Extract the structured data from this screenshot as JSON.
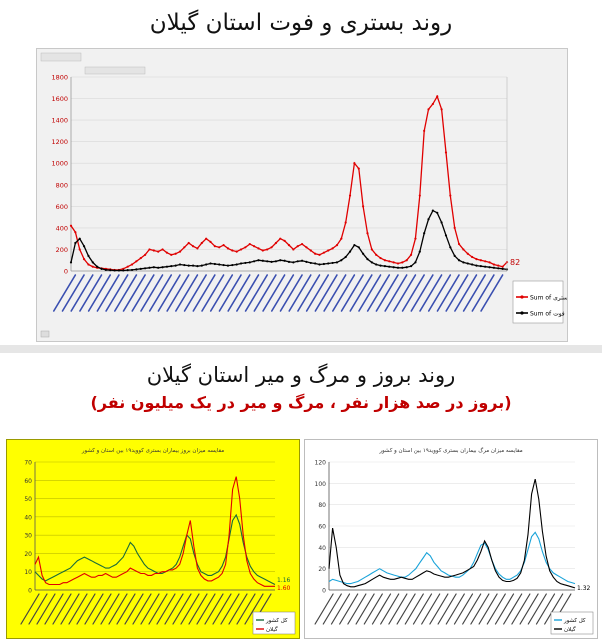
{
  "header1": {
    "title": "روند بستری و فوت استان گیلان"
  },
  "header2": {
    "title": "روند بروز و مرگ و میر استان گیلان",
    "subtitle": "(بروز در صد هزار نفر ، مرگ و میر در یک میلیون نفر)"
  },
  "colors": {
    "red": "#e00000",
    "black": "#000000",
    "blue": "#1aa3d9",
    "green": "#1a6b3a",
    "yellow_bg": "#ffff00"
  },
  "chart_data": [
    {
      "type": "line",
      "title": "",
      "ylim": [
        0,
        1800
      ],
      "y_ticks": [
        0,
        200,
        400,
        600,
        800,
        1000,
        1200,
        1400,
        1600,
        1800
      ],
      "grid": true,
      "legend_position": "right",
      "end_label": "82",
      "x_tick_count": 50,
      "series": [
        {
          "name": "Sum of بستری",
          "color": "#e00000",
          "values": [
            420,
            360,
            200,
            110,
            60,
            40,
            30,
            25,
            20,
            15,
            10,
            10,
            20,
            40,
            60,
            90,
            120,
            150,
            200,
            190,
            180,
            200,
            170,
            150,
            160,
            180,
            220,
            260,
            230,
            210,
            260,
            300,
            270,
            230,
            220,
            240,
            210,
            190,
            180,
            200,
            220,
            250,
            230,
            210,
            190,
            200,
            220,
            260,
            300,
            280,
            240,
            200,
            230,
            250,
            220,
            190,
            160,
            150,
            170,
            190,
            210,
            240,
            300,
            450,
            700,
            1000,
            950,
            600,
            350,
            200,
            150,
            120,
            100,
            90,
            80,
            70,
            80,
            100,
            150,
            300,
            700,
            1300,
            1500,
            1550,
            1620,
            1500,
            1100,
            700,
            400,
            250,
            200,
            160,
            130,
            110,
            100,
            90,
            80,
            60,
            50,
            40,
            82
          ]
        },
        {
          "name": "Sum of فوت",
          "color": "#000000",
          "values": [
            80,
            260,
            300,
            230,
            140,
            80,
            40,
            20,
            10,
            8,
            5,
            5,
            5,
            8,
            10,
            15,
            20,
            25,
            30,
            35,
            30,
            35,
            40,
            45,
            50,
            60,
            55,
            50,
            50,
            45,
            50,
            60,
            70,
            65,
            60,
            55,
            50,
            55,
            60,
            70,
            75,
            80,
            90,
            100,
            95,
            90,
            85,
            90,
            100,
            95,
            85,
            80,
            90,
            95,
            85,
            75,
            70,
            60,
            65,
            70,
            75,
            80,
            100,
            130,
            180,
            240,
            220,
            160,
            110,
            80,
            60,
            50,
            45,
            40,
            35,
            30,
            30,
            35,
            45,
            80,
            180,
            350,
            480,
            560,
            540,
            450,
            330,
            220,
            140,
            100,
            80,
            70,
            60,
            50,
            45,
            40,
            35,
            30,
            25,
            20,
            15
          ]
        }
      ]
    },
    {
      "type": "line",
      "title": "مقایسه میزان بروز بیماران بستری کووید۱۹ بین استان و کشور",
      "ylim": [
        0,
        70
      ],
      "y_ticks": [
        0,
        10,
        20,
        30,
        40,
        50,
        60,
        70
      ],
      "grid": true,
      "legend_position": "bottom-right",
      "end_labels": [
        "1.16",
        "1.60"
      ],
      "x_tick_count": 30,
      "series": [
        {
          "name": "کل کشور",
          "color": "#1a6b3a",
          "values": [
            10,
            8,
            6,
            5,
            6,
            7,
            8,
            9,
            10,
            11,
            12,
            14,
            16,
            17,
            18,
            17,
            16,
            15,
            14,
            13,
            12,
            12,
            13,
            14,
            16,
            18,
            22,
            26,
            24,
            20,
            17,
            14,
            12,
            11,
            10,
            9,
            9,
            10,
            11,
            12,
            14,
            18,
            24,
            30,
            28,
            20,
            14,
            10,
            9,
            8,
            8,
            9,
            10,
            13,
            18,
            28,
            38,
            41,
            36,
            26,
            18,
            13,
            10,
            8,
            7,
            6,
            5,
            4,
            3
          ]
        },
        {
          "name": "گیلان",
          "color": "#e00000",
          "values": [
            14,
            18,
            8,
            4,
            3,
            3,
            3,
            3,
            4,
            4,
            5,
            6,
            7,
            8,
            9,
            8,
            7,
            7,
            8,
            8,
            9,
            8,
            7,
            7,
            8,
            9,
            10,
            12,
            11,
            10,
            9,
            9,
            8,
            8,
            9,
            9,
            10,
            10,
            11,
            11,
            12,
            14,
            20,
            30,
            38,
            24,
            12,
            8,
            6,
            5,
            5,
            6,
            7,
            9,
            14,
            30,
            55,
            62,
            50,
            30,
            16,
            9,
            6,
            4,
            3,
            2,
            2,
            2,
            2
          ]
        }
      ]
    },
    {
      "type": "line",
      "title": "مقایسه میزان مرگ بیماران بستری کووید۱۹ بین استان و کشور",
      "ylim": [
        0,
        120
      ],
      "y_ticks": [
        0,
        20,
        40,
        60,
        80,
        100,
        120
      ],
      "grid": true,
      "legend_position": "bottom-right",
      "end_label": "1.32",
      "x_tick_count": 30,
      "series": [
        {
          "name": "کل کشور",
          "color": "#1aa3d9",
          "values": [
            8,
            10,
            9,
            8,
            7,
            6,
            6,
            7,
            8,
            10,
            12,
            14,
            16,
            18,
            20,
            18,
            16,
            15,
            14,
            13,
            12,
            12,
            14,
            17,
            20,
            25,
            30,
            35,
            32,
            26,
            22,
            18,
            16,
            14,
            13,
            12,
            12,
            14,
            17,
            20,
            26,
            34,
            42,
            44,
            38,
            28,
            20,
            15,
            12,
            10,
            10,
            12,
            14,
            18,
            26,
            38,
            50,
            54,
            48,
            36,
            26,
            20,
            16,
            14,
            12,
            10,
            8,
            7,
            6
          ]
        },
        {
          "name": "گیلان",
          "color": "#000000",
          "values": [
            20,
            58,
            40,
            14,
            6,
            4,
            3,
            3,
            4,
            5,
            6,
            8,
            10,
            12,
            14,
            12,
            11,
            10,
            10,
            11,
            12,
            11,
            10,
            10,
            12,
            14,
            16,
            18,
            17,
            15,
            14,
            13,
            12,
            12,
            13,
            14,
            15,
            16,
            18,
            20,
            22,
            28,
            36,
            46,
            40,
            28,
            18,
            12,
            9,
            8,
            8,
            9,
            11,
            16,
            28,
            52,
            90,
            104,
            85,
            55,
            32,
            18,
            12,
            8,
            6,
            5,
            4,
            3,
            2
          ]
        }
      ]
    }
  ]
}
